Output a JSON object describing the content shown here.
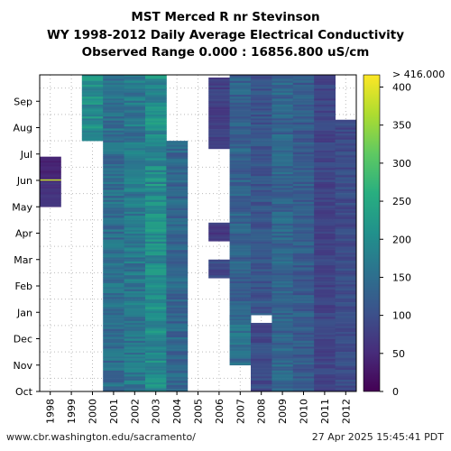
{
  "header": {
    "title_line1": "MST Merced R nr Stevinson",
    "title_line2": "WY 1998-2012 Daily Average Electrical Conductivity",
    "title_line3": "Observed Range 0.000 : 16856.800 uS/cm"
  },
  "footer": {
    "source": "www.cbr.washington.edu/sacramento/",
    "timestamp": "27 Apr 2025 15:45:41 PDT"
  },
  "chart_data": {
    "type": "heatmap",
    "title": "MST Merced R nr Stevinson",
    "subtitle": "WY 1998-2012 Daily Average Electrical Conductivity",
    "observed_range": [
      0.0,
      16856.8
    ],
    "units": "uS/cm",
    "x_labels": [
      "1998",
      "1999",
      "2000",
      "2001",
      "2002",
      "2003",
      "2004",
      "2005",
      "2006",
      "2007",
      "2008",
      "2009",
      "2010",
      "2011",
      "2012"
    ],
    "y_labels": [
      "Oct",
      "Nov",
      "Dec",
      "Jan",
      "Feb",
      "Mar",
      "Apr",
      "May",
      "Jun",
      "Jul",
      "Aug",
      "Sep"
    ],
    "colorbar": {
      "ticks": [
        0,
        50,
        100,
        150,
        200,
        250,
        300,
        350,
        400
      ],
      "max_label": "> 416.000",
      "range": [
        0,
        416
      ],
      "colormap": "viridis"
    },
    "grid": true,
    "columns": [
      {
        "year": "1998",
        "segments": [
          {
            "from": 7.0,
            "to": 8.0,
            "value": 60
          },
          {
            "from": 8.0,
            "to": 8.05,
            "value": 400
          },
          {
            "from": 8.05,
            "to": 8.9,
            "value": 40
          }
        ]
      },
      {
        "year": "1999",
        "segments": []
      },
      {
        "year": "2000",
        "segments": [
          {
            "from": 9.5,
            "to": 12.0,
            "value": 200
          }
        ]
      },
      {
        "year": "2001",
        "segments": [
          {
            "from": 0.0,
            "to": 12.0,
            "value": 150
          }
        ]
      },
      {
        "year": "2002",
        "segments": [
          {
            "from": 0.0,
            "to": 12.0,
            "value": 165
          }
        ]
      },
      {
        "year": "2003",
        "segments": [
          {
            "from": 0.0,
            "to": 12.0,
            "value": 200
          }
        ]
      },
      {
        "year": "2004",
        "segments": [
          {
            "from": 0.0,
            "to": 9.5,
            "value": 135
          }
        ]
      },
      {
        "year": "2005",
        "segments": []
      },
      {
        "year": "2006",
        "segments": [
          {
            "from": 4.3,
            "to": 5.0,
            "value": 90
          },
          {
            "from": 5.7,
            "to": 6.4,
            "value": 70
          },
          {
            "from": 9.2,
            "to": 11.9,
            "value": 80
          }
        ]
      },
      {
        "year": "2007",
        "segments": [
          {
            "from": 1.0,
            "to": 2.9,
            "value": 150
          },
          {
            "from": 2.7,
            "to": 12.0,
            "value": 130
          }
        ]
      },
      {
        "year": "2008",
        "segments": [
          {
            "from": 0.0,
            "to": 2.6,
            "value": 95
          },
          {
            "from": 2.9,
            "to": 12.0,
            "value": 110
          }
        ]
      },
      {
        "year": "2009",
        "segments": [
          {
            "from": 0.0,
            "to": 12.0,
            "value": 135
          }
        ]
      },
      {
        "year": "2010",
        "segments": [
          {
            "from": 0.0,
            "to": 12.0,
            "value": 120
          }
        ]
      },
      {
        "year": "2011",
        "segments": [
          {
            "from": 0.0,
            "to": 12.0,
            "value": 85
          }
        ]
      },
      {
        "year": "2012",
        "segments": [
          {
            "from": 0.0,
            "to": 10.3,
            "value": 95
          }
        ]
      }
    ]
  }
}
